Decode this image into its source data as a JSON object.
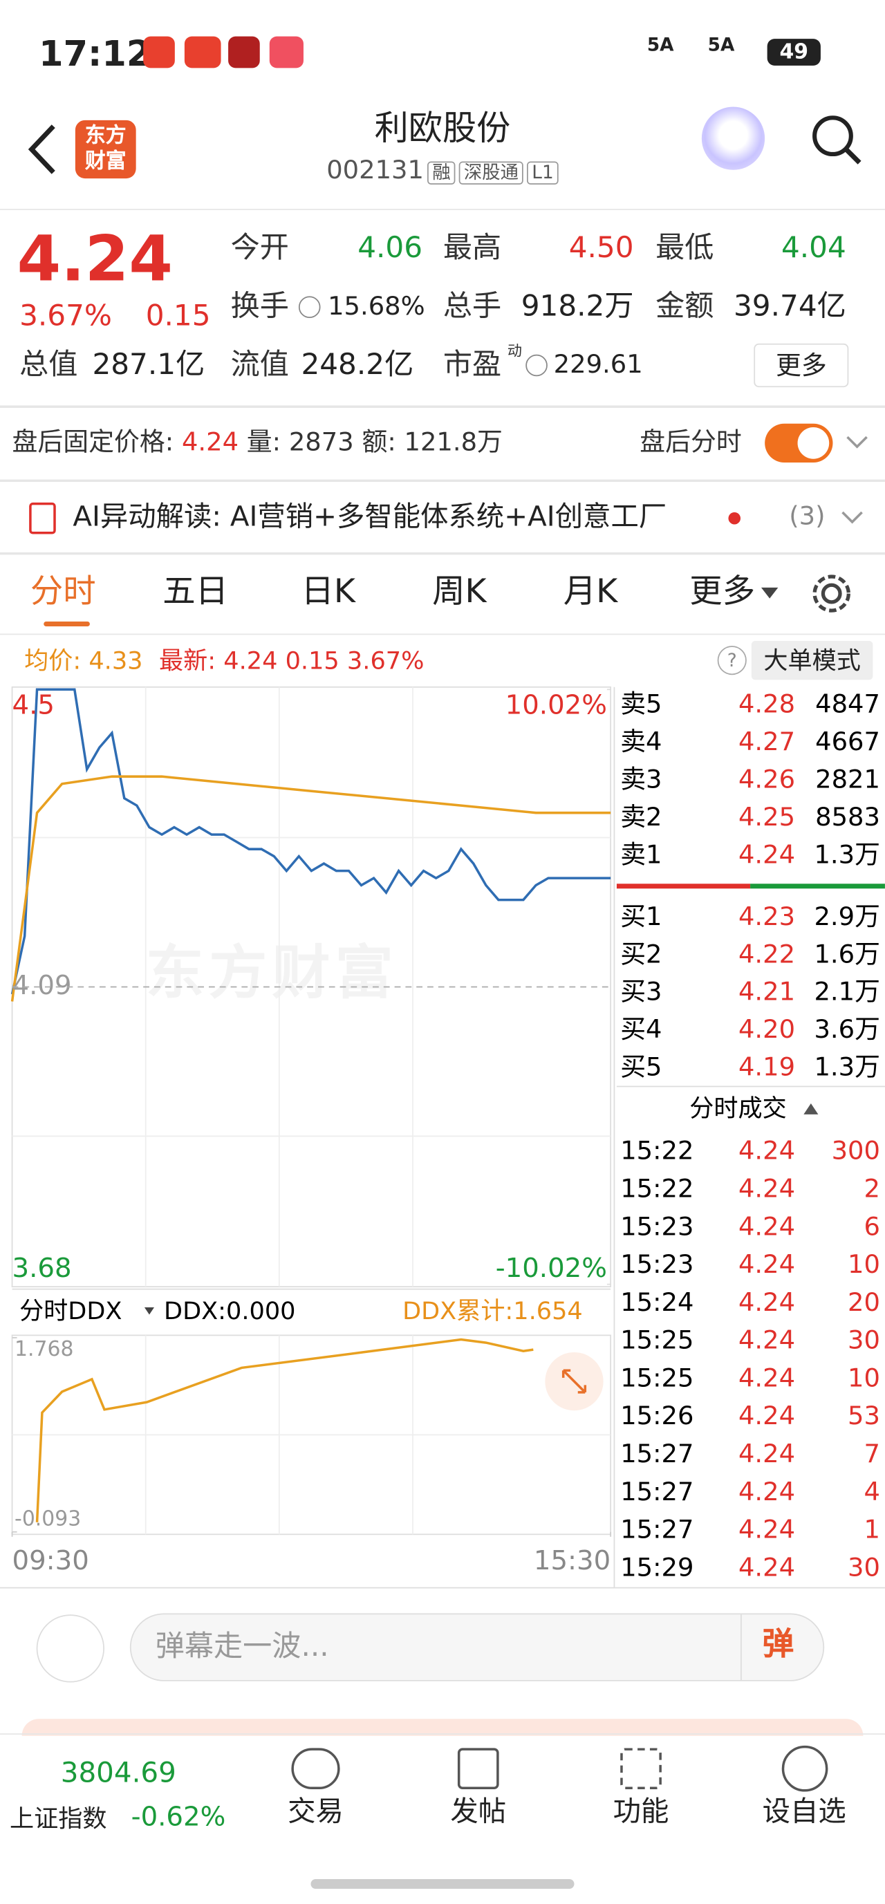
{
  "status_bar": {
    "time": "17:12",
    "net1": "5A",
    "net2": "5A",
    "battery": "49"
  },
  "header": {
    "logo": "东方财富",
    "title": "利欧股份",
    "code": "002131",
    "tags": [
      "融",
      "深股通",
      "L1"
    ]
  },
  "quote": {
    "price": "4.24",
    "change_pct": "3.67%",
    "change": "0.15",
    "open_label": "今开",
    "open": "4.06",
    "high_label": "最高",
    "high": "4.50",
    "low_label": "最低",
    "low": "4.04",
    "turnover_label": "换手",
    "turnover": "15.68%",
    "volume_label": "总手",
    "volume": "918.2万",
    "amount_label": "金额",
    "amount": "39.74亿",
    "mcap_label": "总值",
    "mcap": "287.1亿",
    "float_label": "流值",
    "float": "248.2亿",
    "pe_label": "市盈",
    "pe_sup": "动",
    "pe": "229.61",
    "more": "更多"
  },
  "after_hours": {
    "label": "盘后固定价格:",
    "price": "4.24",
    "vol_label": "量:",
    "vol": "2873",
    "amt_label": "额:",
    "amt": "121.8万",
    "toggle_label": "盘后分时"
  },
  "ai": {
    "text": "AI异动解读:  AI营销+多智能体系统+AI创意工厂",
    "count": "(3)"
  },
  "tabs": [
    "分时",
    "五日",
    "日K",
    "周K",
    "月K",
    "更多"
  ],
  "info_bar": {
    "avg": "均价: 4.33",
    "latest": "最新: 4.24 0.15 3.67%",
    "mode": "大单模式"
  },
  "watermark": "东方财富",
  "chart_data": [
    {
      "type": "line",
      "xlim": [
        0,
        240
      ],
      "ylim": [
        3.68,
        4.5
      ],
      "yticks": [
        4.5,
        4.09,
        3.68
      ],
      "y2lim": [
        -10.02,
        10.02
      ],
      "y2ticks": [
        {
          "value": 10.02,
          "label": "10.02%"
        },
        {
          "value": -10.02,
          "label": "-10.02%"
        }
      ],
      "series": [
        {
          "name": "最新",
          "color": "#2f6db3",
          "x": [
            0,
            5,
            10,
            15,
            20,
            25,
            30,
            35,
            40,
            45,
            50,
            55,
            60,
            65,
            70,
            75,
            80,
            85,
            90,
            95,
            100,
            105,
            110,
            115,
            120,
            125,
            130,
            135,
            140,
            145,
            150,
            155,
            160,
            165,
            170,
            175,
            180,
            185,
            190,
            195,
            200,
            205,
            210,
            215,
            220,
            225,
            230,
            235,
            240
          ],
          "values": [
            4.08,
            4.16,
            4.5,
            4.5,
            4.5,
            4.5,
            4.39,
            4.42,
            4.44,
            4.35,
            4.34,
            4.31,
            4.3,
            4.31,
            4.3,
            4.31,
            4.3,
            4.3,
            4.29,
            4.28,
            4.28,
            4.27,
            4.25,
            4.27,
            4.25,
            4.26,
            4.25,
            4.25,
            4.23,
            4.24,
            4.22,
            4.25,
            4.23,
            4.25,
            4.24,
            4.25,
            4.28,
            4.26,
            4.23,
            4.21,
            4.21,
            4.21,
            4.23,
            4.24,
            4.24,
            4.24,
            4.24,
            4.24,
            4.24
          ]
        },
        {
          "name": "均价",
          "color": "#e8a020",
          "x": [
            0,
            5,
            10,
            20,
            40,
            60,
            90,
            120,
            150,
            180,
            210,
            240
          ],
          "values": [
            4.07,
            4.2,
            4.33,
            4.37,
            4.38,
            4.38,
            4.37,
            4.36,
            4.35,
            4.34,
            4.33,
            4.33
          ]
        }
      ]
    },
    {
      "type": "line",
      "title": "分时DDX",
      "ddx": "DDX:0.000",
      "ddx_total": "DDX累计:1.654",
      "xlim": [
        0,
        240
      ],
      "ylim": [
        -0.093,
        1.768
      ],
      "yticks": [
        1.768,
        -0.093
      ],
      "xticks": [
        {
          "value": 0,
          "label": "09:30"
        },
        {
          "value": 240,
          "label": "15:30"
        }
      ],
      "series": [
        {
          "name": "DDX累计",
          "color": "#e8a020",
          "x": [
            10,
            12,
            20,
            32,
            37,
            54,
            92,
            141,
            180,
            190,
            205,
            209
          ],
          "values": [
            0.0,
            1.05,
            1.25,
            1.37,
            1.08,
            1.15,
            1.48,
            1.63,
            1.75,
            1.72,
            1.64,
            1.654
          ]
        }
      ]
    }
  ],
  "order_book": {
    "asks": [
      [
        "卖5",
        "4.28",
        "4847"
      ],
      [
        "卖4",
        "4.27",
        "4667"
      ],
      [
        "卖3",
        "4.26",
        "2821"
      ],
      [
        "卖2",
        "4.25",
        "8583"
      ],
      [
        "卖1",
        "4.24",
        "1.3万"
      ]
    ],
    "bids": [
      [
        "买1",
        "4.23",
        "2.9万"
      ],
      [
        "买2",
        "4.22",
        "1.6万"
      ],
      [
        "买3",
        "4.21",
        "2.1万"
      ],
      [
        "买4",
        "4.20",
        "3.6万"
      ],
      [
        "买5",
        "4.19",
        "1.3万"
      ]
    ]
  },
  "trades": {
    "title": "分时成交",
    "rows": [
      [
        "15:22",
        "4.24",
        "300"
      ],
      [
        "15:22",
        "4.24",
        "2"
      ],
      [
        "15:23",
        "4.24",
        "6"
      ],
      [
        "15:23",
        "4.24",
        "10"
      ],
      [
        "15:24",
        "4.24",
        "20"
      ],
      [
        "15:25",
        "4.24",
        "30"
      ],
      [
        "15:25",
        "4.24",
        "10"
      ],
      [
        "15:26",
        "4.24",
        "53"
      ],
      [
        "15:27",
        "4.24",
        "7"
      ],
      [
        "15:27",
        "4.24",
        "4"
      ],
      [
        "15:27",
        "4.24",
        "1"
      ],
      [
        "15:29",
        "4.24",
        "30"
      ]
    ]
  },
  "comment": {
    "placeholder": "弹幕走一波...",
    "button": "弹"
  },
  "nav": {
    "index_value": "3804.69",
    "index_name": "上证指数",
    "index_change": "-0.62%",
    "items": [
      "交易",
      "发帖",
      "功能",
      "设自选"
    ]
  }
}
